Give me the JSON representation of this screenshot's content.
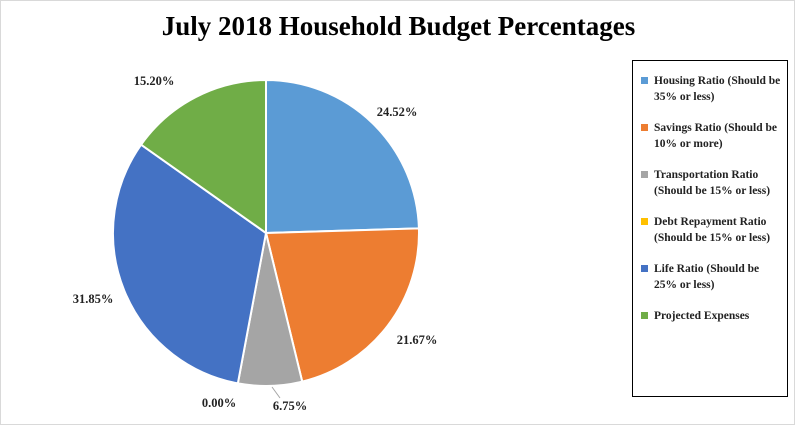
{
  "chart_data": {
    "type": "pie",
    "title": "July 2018 Household Budget Percentages",
    "legend_position": "right",
    "slices": [
      {
        "name": "Housing Ratio (Should be 35% or less)",
        "value": 24.52,
        "label": "24.52%",
        "color": "#5b9bd5"
      },
      {
        "name": "Savings Ratio (Should be 10% or more)",
        "value": 21.67,
        "label": "21.67%",
        "color": "#ed7d31"
      },
      {
        "name": "Transportation Ratio (Should be 15% or less)",
        "value": 6.75,
        "label": "6.75%",
        "color": "#a5a5a5"
      },
      {
        "name": "Debt Repayment Ratio (Should be 15% or less)",
        "value": 0.0,
        "label": "0.00%",
        "color": "#ffc000"
      },
      {
        "name": "Life Ratio (Should be 25% or less)",
        "value": 31.85,
        "label": "31.85%",
        "color": "#4472c4"
      },
      {
        "name": "Projected Expenses",
        "value": 15.2,
        "label": "15.20%",
        "color": "#70ad47"
      }
    ]
  }
}
